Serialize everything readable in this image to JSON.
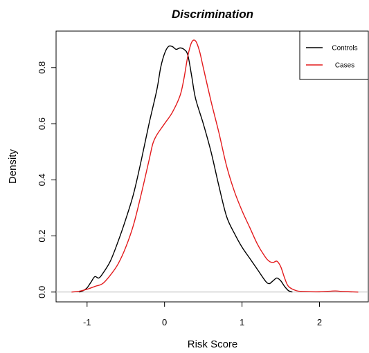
{
  "chart_data": {
    "type": "line",
    "title": "Discrimination",
    "xlabel": "Risk Score",
    "ylabel": "Density",
    "xlim": [
      -1.4,
      2.63
    ],
    "ylim": [
      -0.035,
      0.93
    ],
    "x_ticks": [
      "-1",
      "0",
      "1",
      "2"
    ],
    "x_tick_values": [
      -1,
      0,
      1,
      2
    ],
    "y_ticks": [
      "0.0",
      "0.2",
      "0.4",
      "0.6",
      "0.8"
    ],
    "y_tick_values": [
      0,
      0.2,
      0.4,
      0.6,
      0.8
    ],
    "grid": false,
    "baseline": 0,
    "legend_position": "top-right",
    "series": [
      {
        "name": "Controls",
        "color": "#000000",
        "points": [
          [
            -1.1,
            0.0
          ],
          [
            -1.05,
            0.005
          ],
          [
            -1.0,
            0.015
          ],
          [
            -0.95,
            0.035
          ],
          [
            -0.9,
            0.055
          ],
          [
            -0.85,
            0.05
          ],
          [
            -0.8,
            0.065
          ],
          [
            -0.7,
            0.11
          ],
          [
            -0.6,
            0.18
          ],
          [
            -0.5,
            0.26
          ],
          [
            -0.4,
            0.35
          ],
          [
            -0.3,
            0.47
          ],
          [
            -0.2,
            0.6
          ],
          [
            -0.1,
            0.72
          ],
          [
            -0.05,
            0.8
          ],
          [
            0.0,
            0.85
          ],
          [
            0.05,
            0.875
          ],
          [
            0.1,
            0.875
          ],
          [
            0.15,
            0.865
          ],
          [
            0.2,
            0.87
          ],
          [
            0.25,
            0.865
          ],
          [
            0.3,
            0.845
          ],
          [
            0.35,
            0.77
          ],
          [
            0.4,
            0.69
          ],
          [
            0.5,
            0.6
          ],
          [
            0.6,
            0.5
          ],
          [
            0.7,
            0.38
          ],
          [
            0.8,
            0.27
          ],
          [
            0.9,
            0.21
          ],
          [
            1.0,
            0.16
          ],
          [
            1.1,
            0.12
          ],
          [
            1.2,
            0.08
          ],
          [
            1.3,
            0.04
          ],
          [
            1.35,
            0.03
          ],
          [
            1.4,
            0.04
          ],
          [
            1.45,
            0.05
          ],
          [
            1.5,
            0.04
          ],
          [
            1.55,
            0.02
          ],
          [
            1.6,
            0.005
          ],
          [
            1.65,
            0.0
          ]
        ]
      },
      {
        "name": "Cases",
        "color": "#e31a1c",
        "points": [
          [
            -1.2,
            0.0
          ],
          [
            -1.1,
            0.003
          ],
          [
            -1.0,
            0.01
          ],
          [
            -0.9,
            0.02
          ],
          [
            -0.8,
            0.03
          ],
          [
            -0.7,
            0.06
          ],
          [
            -0.6,
            0.1
          ],
          [
            -0.5,
            0.16
          ],
          [
            -0.4,
            0.24
          ],
          [
            -0.3,
            0.35
          ],
          [
            -0.2,
            0.47
          ],
          [
            -0.15,
            0.53
          ],
          [
            -0.1,
            0.56
          ],
          [
            0.0,
            0.6
          ],
          [
            0.1,
            0.64
          ],
          [
            0.2,
            0.7
          ],
          [
            0.25,
            0.76
          ],
          [
            0.3,
            0.84
          ],
          [
            0.35,
            0.89
          ],
          [
            0.4,
            0.895
          ],
          [
            0.45,
            0.86
          ],
          [
            0.5,
            0.8
          ],
          [
            0.6,
            0.68
          ],
          [
            0.7,
            0.57
          ],
          [
            0.8,
            0.45
          ],
          [
            0.9,
            0.36
          ],
          [
            1.0,
            0.29
          ],
          [
            1.1,
            0.23
          ],
          [
            1.2,
            0.17
          ],
          [
            1.3,
            0.125
          ],
          [
            1.35,
            0.11
          ],
          [
            1.4,
            0.105
          ],
          [
            1.45,
            0.11
          ],
          [
            1.5,
            0.09
          ],
          [
            1.55,
            0.05
          ],
          [
            1.6,
            0.02
          ],
          [
            1.7,
            0.005
          ],
          [
            1.8,
            0.002
          ],
          [
            2.0,
            0.001
          ],
          [
            2.2,
            0.004
          ],
          [
            2.3,
            0.002
          ],
          [
            2.5,
            0.0
          ]
        ]
      }
    ]
  }
}
